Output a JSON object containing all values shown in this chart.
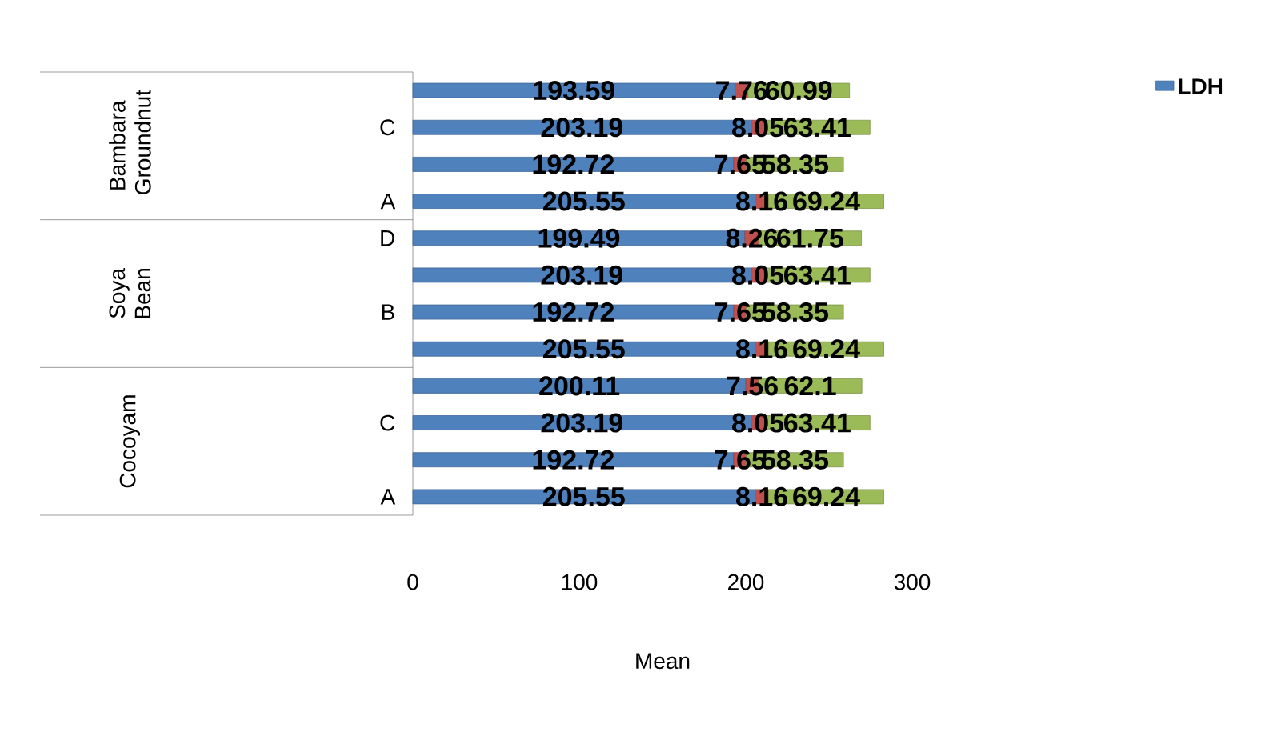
{
  "chart_data": {
    "type": "bar",
    "orientation": "horizontal",
    "stacked": true,
    "xlabel": "Mean",
    "categories": [
      null,
      "C",
      null,
      "A",
      "D",
      null,
      "B",
      null,
      null,
      "C",
      null,
      "A"
    ],
    "annotations": [
      "Bambara Groundnut",
      "Soya Bean",
      "Cocoyam"
    ],
    "series": [
      {
        "name": "LDH",
        "color": "#4f81bd",
        "values": [
          193.59,
          203.19,
          192.72,
          205.55,
          199.49,
          203.19,
          192.72,
          205.55,
          200.11,
          203.19,
          192.72,
          205.55
        ]
      },
      {
        "color": "#c0504d",
        "values": [
          7.76,
          8.05,
          7.65,
          8.16,
          8.26,
          8.05,
          7.65,
          8.16,
          7.56,
          8.05,
          7.65,
          8.16
        ]
      },
      {
        "color": "#9bbb59",
        "values": [
          60.99,
          63.41,
          58.35,
          69.24,
          61.75,
          63.41,
          58.35,
          69.24,
          62.1,
          63.41,
          58.35,
          69.24
        ]
      }
    ],
    "xlim": [
      0,
      300
    ],
    "xticks": [
      0,
      100,
      200,
      300
    ],
    "data_labels": true,
    "legend": "top right",
    "grid": false
  }
}
